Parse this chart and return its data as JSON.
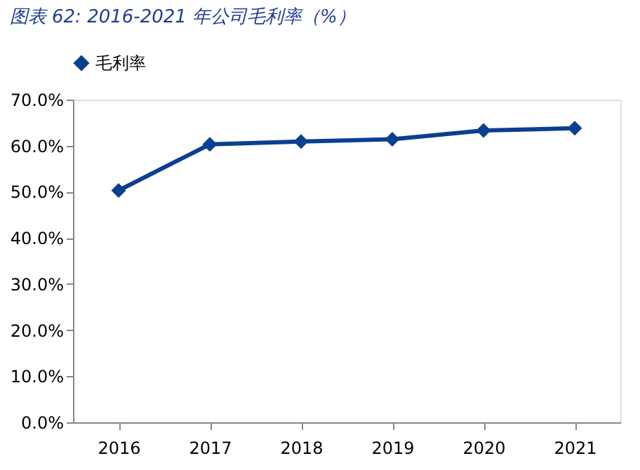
{
  "chart_data": {
    "type": "line",
    "title": "图表 62:  2016-2021 年公司毛利率（%）",
    "categories": [
      "2016",
      "2017",
      "2018",
      "2019",
      "2020",
      "2021"
    ],
    "series": [
      {
        "name": "毛利率",
        "color": "#0a3f91",
        "values": [
          50.3,
          60.3,
          60.9,
          61.4,
          63.3,
          63.8
        ]
      }
    ],
    "ylim": [
      0,
      70
    ],
    "yticks": [
      {
        "value": 0,
        "label": "0.0%"
      },
      {
        "value": 10,
        "label": "10.0%"
      },
      {
        "value": 20,
        "label": "20.0%"
      },
      {
        "value": 30,
        "label": "30.0%"
      },
      {
        "value": 40,
        "label": "40.0%"
      },
      {
        "value": 50,
        "label": "50.0%"
      },
      {
        "value": 60,
        "label": "60.0%"
      },
      {
        "value": 70,
        "label": "70.0%"
      }
    ],
    "grid": false,
    "legend": "top",
    "marker": "diamond",
    "line_style": "solid"
  }
}
